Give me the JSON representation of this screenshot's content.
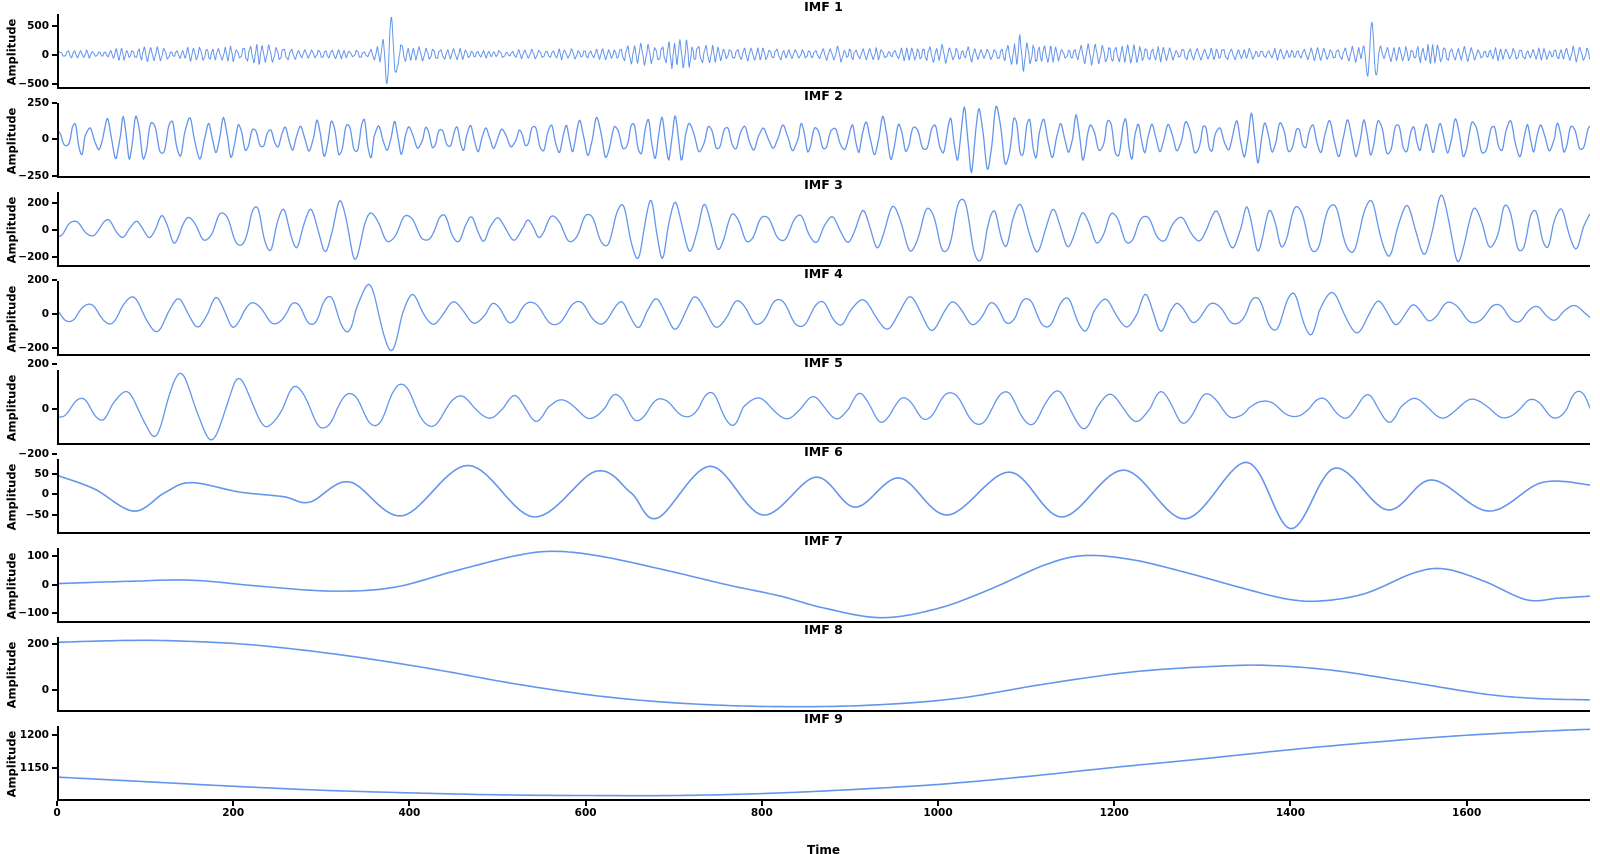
{
  "figure": {
    "background": "#ffffff",
    "line_color": "#6495ED",
    "axis_color": "#000000",
    "text_color": "#000000",
    "ylabel_shared": "Amplitude",
    "xlabel": "Time",
    "x_max": 1740,
    "x_ticks": [
      {
        "v": 0,
        "label": "0"
      },
      {
        "v": 200,
        "label": "200"
      },
      {
        "v": 400,
        "label": "400"
      },
      {
        "v": 600,
        "label": "600"
      },
      {
        "v": 800,
        "label": "800"
      },
      {
        "v": 1000,
        "label": "1000"
      },
      {
        "v": 1200,
        "label": "1200"
      },
      {
        "v": 1400,
        "label": "1400"
      },
      {
        "v": 1600,
        "label": "1600"
      }
    ]
  },
  "chart_data": [
    {
      "type": "line",
      "title": "IMF 1",
      "ylabel": "Amplitude",
      "yticks": [
        {
          "v": 500,
          "label": "500"
        },
        {
          "v": 0,
          "label": "0"
        },
        {
          "v": -500,
          "label": "−500"
        }
      ],
      "series_mode": "synth",
      "synth": {
        "seed": 7,
        "period": 7.2,
        "dt": 0.6,
        "harm": 0.35,
        "envelope": [
          [
            0,
            80
          ],
          [
            50,
            55
          ],
          [
            90,
            110
          ],
          [
            130,
            85
          ],
          [
            175,
            125
          ],
          [
            230,
            140
          ],
          [
            290,
            70
          ],
          [
            350,
            80
          ],
          [
            370,
            120
          ],
          [
            430,
            95
          ],
          [
            500,
            60
          ],
          [
            560,
            85
          ],
          [
            620,
            70
          ],
          [
            680,
            200
          ],
          [
            715,
            220
          ],
          [
            750,
            90
          ],
          [
            790,
            115
          ],
          [
            850,
            70
          ],
          [
            900,
            125
          ],
          [
            950,
            85
          ],
          [
            1000,
            145
          ],
          [
            1055,
            95
          ],
          [
            1090,
            260
          ],
          [
            1130,
            110
          ],
          [
            1200,
            170
          ],
          [
            1260,
            100
          ],
          [
            1310,
            115
          ],
          [
            1380,
            75
          ],
          [
            1440,
            95
          ],
          [
            1520,
            130
          ],
          [
            1560,
            145
          ],
          [
            1620,
            95
          ],
          [
            1700,
            105
          ],
          [
            1740,
            110
          ]
        ],
        "spikes": [
          [
            378,
            640
          ],
          [
            1492,
            500
          ]
        ]
      }
    },
    {
      "type": "line",
      "title": "IMF 2",
      "ylabel": "Amplitude",
      "yticks": [
        {
          "v": 250,
          "label": "250"
        },
        {
          "v": 0,
          "label": "0"
        },
        {
          "v": -250,
          "label": "−250"
        }
      ],
      "series_mode": "synth",
      "synth": {
        "seed": 12,
        "period": 19,
        "dt": 1,
        "harm": 0.15,
        "envelope": [
          [
            0,
            100
          ],
          [
            60,
            145
          ],
          [
            120,
            155
          ],
          [
            200,
            125
          ],
          [
            260,
            105
          ],
          [
            330,
            165
          ],
          [
            390,
            125
          ],
          [
            450,
            85
          ],
          [
            520,
            105
          ],
          [
            590,
            135
          ],
          [
            650,
            125
          ],
          [
            720,
            145
          ],
          [
            790,
            105
          ],
          [
            850,
            95
          ],
          [
            900,
            135
          ],
          [
            960,
            145
          ],
          [
            1020,
            190
          ],
          [
            1062,
            300
          ],
          [
            1100,
            175
          ],
          [
            1160,
            140
          ],
          [
            1230,
            150
          ],
          [
            1300,
            125
          ],
          [
            1360,
            170
          ],
          [
            1420,
            125
          ],
          [
            1480,
            135
          ],
          [
            1540,
            115
          ],
          [
            1600,
            135
          ],
          [
            1700,
            125
          ],
          [
            1740,
            125
          ]
        ],
        "spikes": []
      }
    },
    {
      "type": "line",
      "title": "IMF 3",
      "ylabel": "Amplitude",
      "yticks": [
        {
          "v": 200,
          "label": "200"
        },
        {
          "v": 0,
          "label": "0"
        },
        {
          "v": -200,
          "label": "−200"
        }
      ],
      "series_mode": "synth",
      "synth": {
        "seed": 3,
        "period": 34,
        "dt": 1.5,
        "harm": 0.1,
        "envelope": [
          [
            0,
            115
          ],
          [
            80,
            75
          ],
          [
            150,
            145
          ],
          [
            220,
            185
          ],
          [
            280,
            145
          ],
          [
            340,
            235
          ],
          [
            400,
            150
          ],
          [
            470,
            95
          ],
          [
            540,
            115
          ],
          [
            610,
            145
          ],
          [
            660,
            245
          ],
          [
            700,
            250
          ],
          [
            740,
            165
          ],
          [
            800,
            125
          ],
          [
            860,
            105
          ],
          [
            920,
            145
          ],
          [
            980,
            165
          ],
          [
            1040,
            265
          ],
          [
            1100,
            205
          ],
          [
            1180,
            155
          ],
          [
            1250,
            135
          ],
          [
            1320,
            145
          ],
          [
            1390,
            185
          ],
          [
            1450,
            235
          ],
          [
            1520,
            185
          ],
          [
            1580,
            235
          ],
          [
            1650,
            185
          ],
          [
            1740,
            165
          ]
        ],
        "spikes": []
      }
    },
    {
      "type": "line",
      "title": "IMF 4",
      "ylabel": "Amplitude",
      "yticks": [
        {
          "v": 200,
          "label": "200"
        },
        {
          "v": 0,
          "label": "0"
        },
        {
          "v": -200,
          "label": "−200"
        }
      ],
      "series_mode": "synth",
      "synth": {
        "seed": 21,
        "period": 47,
        "dt": 2,
        "harm": 0.08,
        "envelope": [
          [
            0,
            65
          ],
          [
            70,
            95
          ],
          [
            140,
            115
          ],
          [
            200,
            85
          ],
          [
            270,
            95
          ],
          [
            330,
            115
          ],
          [
            365,
            265
          ],
          [
            385,
            255
          ],
          [
            420,
            110
          ],
          [
            500,
            75
          ],
          [
            560,
            85
          ],
          [
            620,
            65
          ],
          [
            680,
            115
          ],
          [
            720,
            135
          ],
          [
            780,
            95
          ],
          [
            840,
            85
          ],
          [
            900,
            75
          ],
          [
            950,
            95
          ],
          [
            1010,
            105
          ],
          [
            1070,
            115
          ],
          [
            1130,
            95
          ],
          [
            1190,
            125
          ],
          [
            1250,
            105
          ],
          [
            1310,
            95
          ],
          [
            1370,
            115
          ],
          [
            1430,
            125
          ],
          [
            1490,
            105
          ],
          [
            1550,
            85
          ],
          [
            1610,
            65
          ],
          [
            1740,
            55
          ]
        ],
        "spikes": []
      }
    },
    {
      "type": "line",
      "title": "IMF 5",
      "ylabel": "Amplitude",
      "yticks": [
        {
          "v": 200,
          "label": "200"
        },
        {
          "v": 0,
          "label": "0"
        },
        {
          "v": -200,
          "label": "−200"
        }
      ],
      "series_mode": "synth",
      "synth": {
        "seed": 5,
        "period": 57,
        "dt": 2,
        "harm": 0.06,
        "envelope": [
          [
            0,
            45
          ],
          [
            60,
            70
          ],
          [
            100,
            120
          ],
          [
            125,
            215
          ],
          [
            160,
            160
          ],
          [
            200,
            205
          ],
          [
            240,
            115
          ],
          [
            300,
            100
          ],
          [
            350,
            145
          ],
          [
            385,
            170
          ],
          [
            420,
            125
          ],
          [
            470,
            65
          ],
          [
            520,
            60
          ],
          [
            570,
            65
          ],
          [
            640,
            100
          ],
          [
            700,
            65
          ],
          [
            760,
            75
          ],
          [
            820,
            80
          ],
          [
            880,
            65
          ],
          [
            940,
            60
          ],
          [
            1000,
            75
          ],
          [
            1060,
            80
          ],
          [
            1120,
            75
          ],
          [
            1180,
            100
          ],
          [
            1240,
            90
          ],
          [
            1300,
            75
          ],
          [
            1340,
            45
          ],
          [
            1390,
            75
          ],
          [
            1440,
            65
          ],
          [
            1500,
            60
          ],
          [
            1560,
            70
          ],
          [
            1620,
            55
          ],
          [
            1700,
            85
          ],
          [
            1740,
            90
          ]
        ],
        "spikes": []
      }
    },
    {
      "type": "line",
      "title": "IMF 6",
      "ylabel": "Amplitude",
      "yticks": [
        {
          "v": 50,
          "label": "50"
        },
        {
          "v": 0,
          "label": "0"
        },
        {
          "v": -50,
          "label": "−50"
        }
      ],
      "series_mode": "keypoints",
      "keypoints": [
        [
          0,
          45
        ],
        [
          40,
          12
        ],
        [
          85,
          -45
        ],
        [
          120,
          2
        ],
        [
          150,
          28
        ],
        [
          205,
          4
        ],
        [
          255,
          -8
        ],
        [
          285,
          -22
        ],
        [
          330,
          30
        ],
        [
          390,
          -57
        ],
        [
          465,
          72
        ],
        [
          540,
          -60
        ],
        [
          610,
          57
        ],
        [
          650,
          2
        ],
        [
          680,
          -63
        ],
        [
          740,
          70
        ],
        [
          800,
          -55
        ],
        [
          860,
          42
        ],
        [
          905,
          -35
        ],
        [
          955,
          40
        ],
        [
          1010,
          -55
        ],
        [
          1080,
          55
        ],
        [
          1140,
          -60
        ],
        [
          1210,
          60
        ],
        [
          1280,
          -65
        ],
        [
          1350,
          80
        ],
        [
          1400,
          -90
        ],
        [
          1450,
          65
        ],
        [
          1510,
          -42
        ],
        [
          1560,
          35
        ],
        [
          1625,
          -45
        ],
        [
          1685,
          28
        ],
        [
          1740,
          22
        ]
      ]
    },
    {
      "type": "line",
      "title": "IMF 7",
      "ylabel": "Amplitude",
      "yticks": [
        {
          "v": 100,
          "label": "100"
        },
        {
          "v": 0,
          "label": "0"
        },
        {
          "v": -100,
          "label": "−100"
        }
      ],
      "series_mode": "keypoints",
      "keypoints": [
        [
          0,
          0
        ],
        [
          80,
          8
        ],
        [
          150,
          12
        ],
        [
          230,
          -10
        ],
        [
          310,
          -27
        ],
        [
          380,
          -14
        ],
        [
          450,
          45
        ],
        [
          520,
          100
        ],
        [
          565,
          115
        ],
        [
          620,
          95
        ],
        [
          700,
          40
        ],
        [
          760,
          -5
        ],
        [
          820,
          -45
        ],
        [
          870,
          -88
        ],
        [
          935,
          -122
        ],
        [
          1000,
          -88
        ],
        [
          1060,
          -18
        ],
        [
          1120,
          66
        ],
        [
          1165,
          100
        ],
        [
          1220,
          85
        ],
        [
          1280,
          40
        ],
        [
          1340,
          -12
        ],
        [
          1395,
          -55
        ],
        [
          1435,
          -62
        ],
        [
          1485,
          -35
        ],
        [
          1540,
          38
        ],
        [
          1575,
          52
        ],
        [
          1620,
          8
        ],
        [
          1668,
          -58
        ],
        [
          1705,
          -52
        ],
        [
          1740,
          -45
        ]
      ]
    },
    {
      "type": "line",
      "title": "IMF 8",
      "ylabel": "Amplitude",
      "yticks": [
        {
          "v": 200,
          "label": "200"
        },
        {
          "v": 0,
          "label": "0"
        }
      ],
      "series_mode": "keypoints",
      "keypoints": [
        [
          0,
          208
        ],
        [
          80,
          216
        ],
        [
          140,
          213
        ],
        [
          220,
          196
        ],
        [
          320,
          152
        ],
        [
          420,
          92
        ],
        [
          520,
          22
        ],
        [
          620,
          -34
        ],
        [
          720,
          -66
        ],
        [
          820,
          -78
        ],
        [
          920,
          -72
        ],
        [
          1020,
          -42
        ],
        [
          1120,
          22
        ],
        [
          1220,
          76
        ],
        [
          1320,
          102
        ],
        [
          1380,
          104
        ],
        [
          1450,
          82
        ],
        [
          1530,
          34
        ],
        [
          1620,
          -22
        ],
        [
          1680,
          -42
        ],
        [
          1740,
          -48
        ]
      ]
    },
    {
      "type": "line",
      "title": "IMF 9",
      "ylabel": "Amplitude",
      "yticks": [
        {
          "v": 1200,
          "label": "1200"
        },
        {
          "v": 1150,
          "label": "1150"
        }
      ],
      "series_mode": "keypoints",
      "keypoints": [
        [
          0,
          1135
        ],
        [
          100,
          1128
        ],
        [
          200,
          1121
        ],
        [
          300,
          1115
        ],
        [
          400,
          1111
        ],
        [
          500,
          1108
        ],
        [
          600,
          1107
        ],
        [
          700,
          1107
        ],
        [
          800,
          1110
        ],
        [
          900,
          1116
        ],
        [
          1000,
          1124
        ],
        [
          1100,
          1136
        ],
        [
          1200,
          1150
        ],
        [
          1300,
          1163
        ],
        [
          1400,
          1177
        ],
        [
          1500,
          1189
        ],
        [
          1600,
          1199
        ],
        [
          1700,
          1206
        ],
        [
          1740,
          1208
        ]
      ]
    }
  ]
}
